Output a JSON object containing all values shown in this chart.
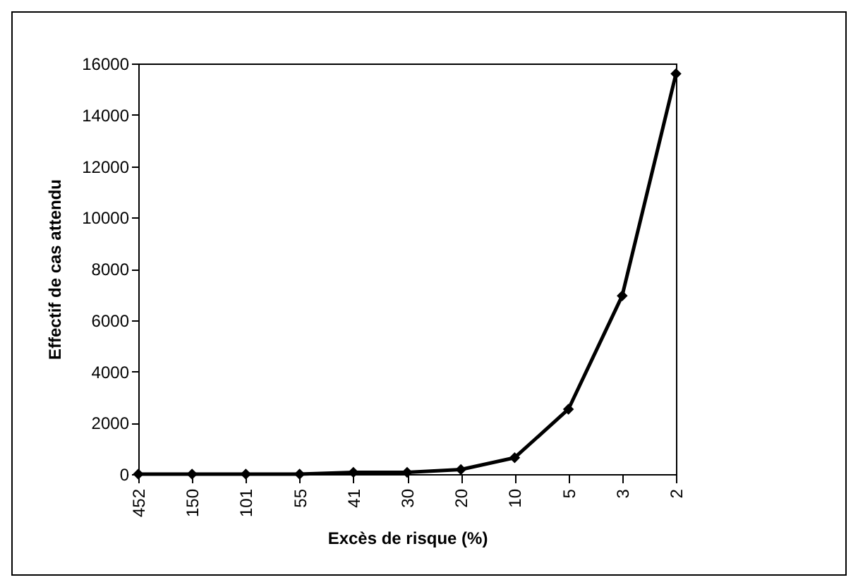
{
  "chart_data": {
    "type": "line",
    "xlabel": "Excès de risque (%)",
    "ylabel": "Effectif de cas attendu",
    "categories": [
      "452",
      "150",
      "101",
      "55",
      "41",
      "30",
      "20",
      "10",
      "5",
      "3",
      "2"
    ],
    "series": [
      {
        "color": "#000000",
        "values": [
          0,
          0,
          0,
          0,
          70,
          70,
          180,
          640,
          2530,
          6950,
          15600
        ]
      }
    ],
    "ylim": [
      0,
      16000
    ],
    "yticks": [
      0,
      2000,
      4000,
      6000,
      8000,
      10000,
      12000,
      14000,
      16000
    ],
    "grid": false,
    "legend": false,
    "marker": "diamond",
    "line_style": "solid"
  }
}
